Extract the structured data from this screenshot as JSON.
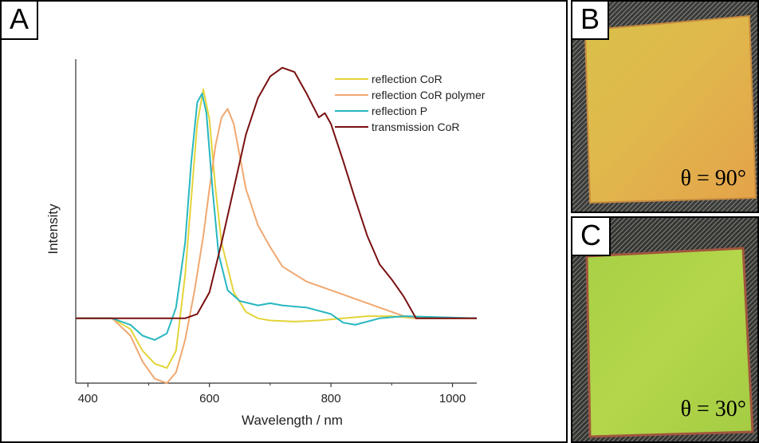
{
  "panels": {
    "a_label": "A",
    "b_label": "B",
    "c_label": "C",
    "b_angle": "θ = 90°",
    "c_angle": "θ = 30°"
  },
  "chart_data": {
    "type": "line",
    "xlabel": "Wavelength / nm",
    "ylabel": "Intensity",
    "xlim": [
      380,
      1040
    ],
    "ylim": [
      -0.3,
      1.2
    ],
    "xticks": [
      400,
      600,
      800,
      1000
    ],
    "yticks": [],
    "grid": false,
    "legend_position": "top-right",
    "series": [
      {
        "name": "reflection CoR",
        "color": "#e3d43a",
        "x": [
          380,
          440,
          470,
          490,
          510,
          530,
          545,
          560,
          570,
          580,
          590,
          600,
          610,
          620,
          640,
          660,
          680,
          700,
          740,
          780,
          820,
          860,
          900,
          940,
          1040
        ],
        "y": [
          0,
          0,
          -0.05,
          -0.15,
          -0.21,
          -0.23,
          -0.15,
          0.2,
          0.55,
          0.9,
          1.06,
          0.92,
          0.6,
          0.35,
          0.12,
          0.03,
          0.0,
          -0.01,
          -0.015,
          -0.01,
          0.0,
          0.01,
          0.01,
          0.0,
          0
        ]
      },
      {
        "name": "reflection CoR polymer",
        "color": "#f0a870",
        "x": [
          380,
          440,
          470,
          490,
          510,
          530,
          545,
          560,
          575,
          590,
          600,
          610,
          620,
          630,
          640,
          650,
          660,
          680,
          700,
          720,
          760,
          800,
          840,
          880,
          920,
          940,
          1040
        ],
        "y": [
          0,
          0,
          -0.08,
          -0.2,
          -0.28,
          -0.3,
          -0.25,
          -0.1,
          0.12,
          0.38,
          0.6,
          0.8,
          0.93,
          0.97,
          0.9,
          0.75,
          0.6,
          0.43,
          0.33,
          0.24,
          0.17,
          0.13,
          0.09,
          0.05,
          0.01,
          0,
          0
        ]
      },
      {
        "name": "reflection P",
        "color": "#27b7c0",
        "x": [
          380,
          440,
          470,
          490,
          510,
          530,
          545,
          560,
          570,
          580,
          588,
          595,
          605,
          615,
          630,
          650,
          680,
          700,
          720,
          760,
          800,
          820,
          840,
          880,
          920,
          1040
        ],
        "y": [
          0,
          0,
          -0.03,
          -0.08,
          -0.1,
          -0.07,
          0.05,
          0.35,
          0.72,
          1.0,
          1.04,
          0.95,
          0.6,
          0.3,
          0.13,
          0.08,
          0.06,
          0.07,
          0.06,
          0.05,
          0.02,
          -0.02,
          -0.03,
          0.0,
          0.01,
          0
        ]
      },
      {
        "name": "transmission CoR",
        "color": "#7a1010",
        "x": [
          380,
          560,
          580,
          600,
          620,
          640,
          660,
          680,
          700,
          720,
          740,
          760,
          780,
          790,
          800,
          820,
          840,
          860,
          880,
          900,
          920,
          940,
          1040
        ],
        "y": [
          0,
          0,
          0.02,
          0.12,
          0.35,
          0.6,
          0.85,
          1.02,
          1.12,
          1.16,
          1.14,
          1.04,
          0.93,
          0.95,
          0.9,
          0.73,
          0.55,
          0.38,
          0.25,
          0.18,
          0.1,
          0.0,
          0
        ]
      }
    ]
  }
}
